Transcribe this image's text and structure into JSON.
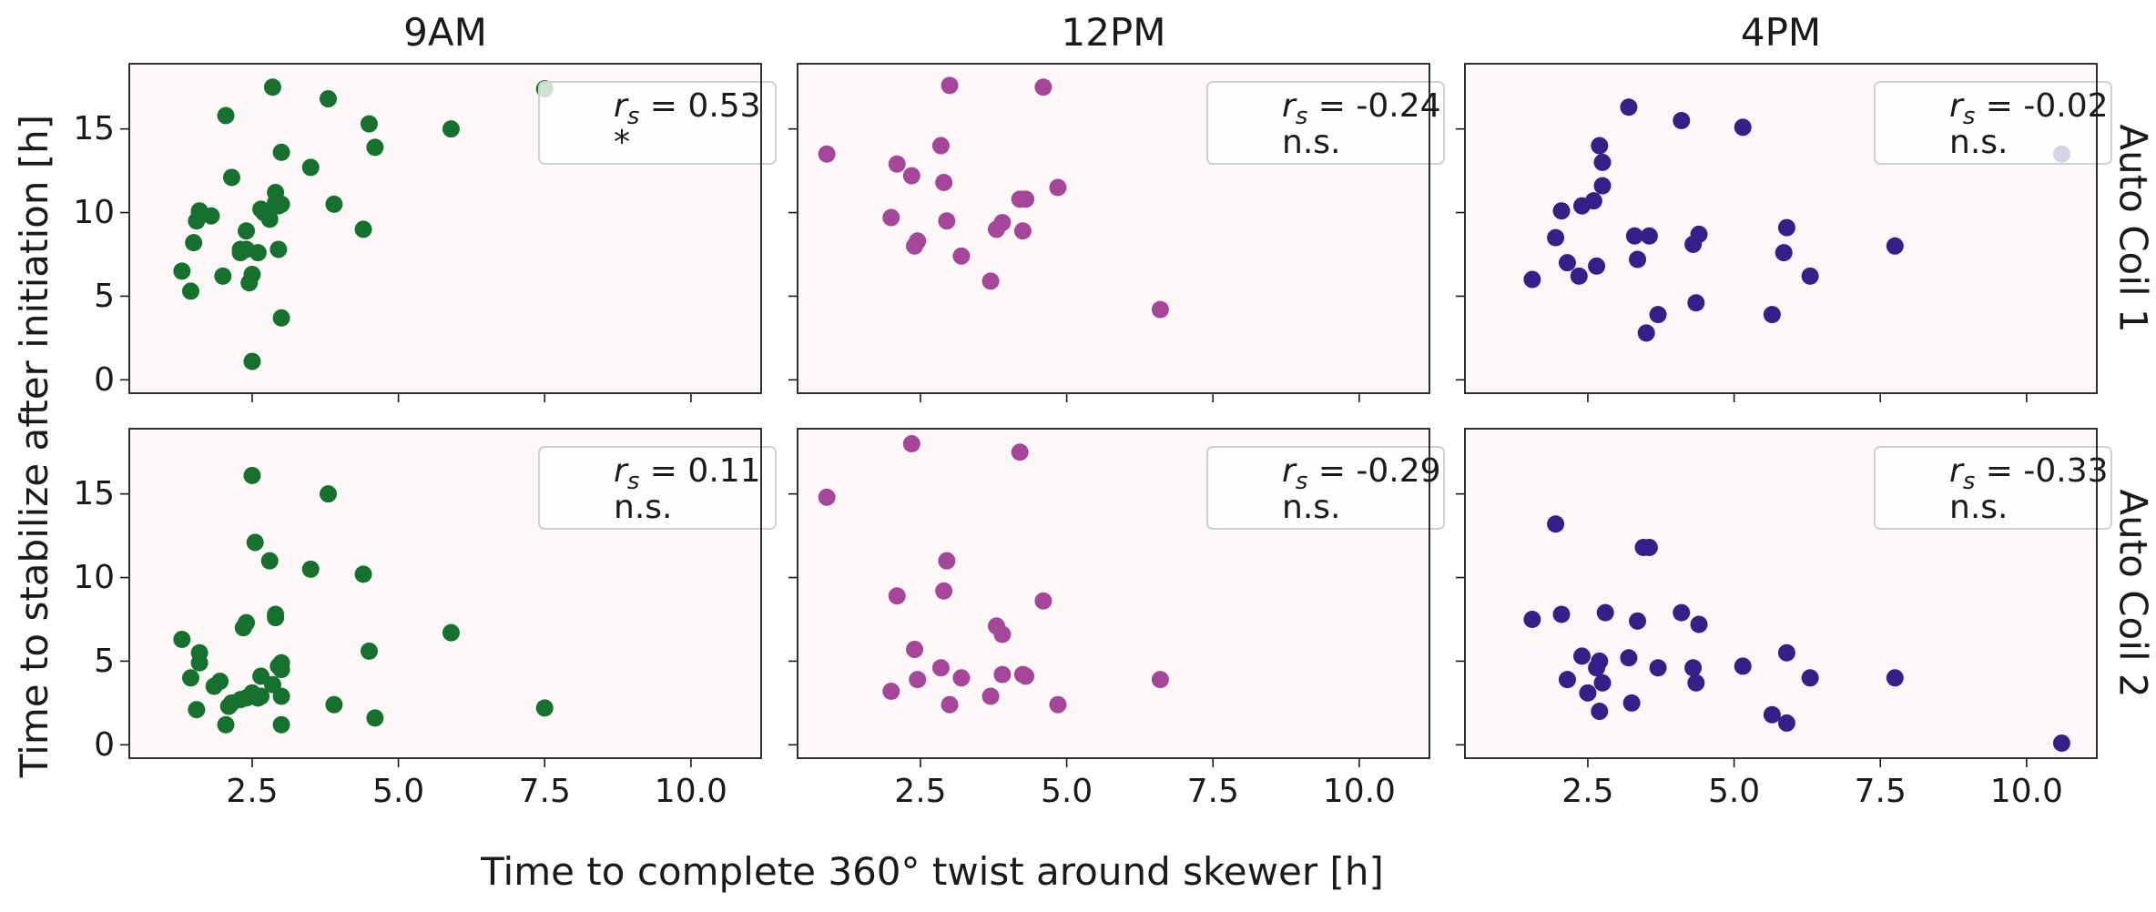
{
  "figure": {
    "xlabel": "Time to complete 360° twist around skewer [h]",
    "ylabel": "Time to stabilize after initiation [h]",
    "columns": [
      "9AM",
      "12PM",
      "4PM"
    ],
    "rows": [
      "Auto Coil 1",
      "Auto Coil 2"
    ],
    "panel_background": "#fdf8f8",
    "colors": {
      "9AM": "#16712f",
      "12PM": "#a6469a",
      "4PM": "#35208a"
    },
    "xlim": [
      0.4,
      11.2
    ],
    "ylim": [
      -0.8,
      18.9
    ],
    "xticks": [
      2.5,
      5.0,
      7.5,
      10.0
    ],
    "yticks": [
      0,
      5,
      10,
      15
    ]
  },
  "chart_data": [
    {
      "type": "scatter",
      "column": "9AM",
      "row": "Auto Coil 1",
      "stat_label": "= 0.53",
      "significance": "*",
      "x": [
        1.3,
        1.45,
        1.5,
        1.55,
        1.6,
        1.6,
        1.8,
        2.0,
        2.05,
        2.15,
        2.3,
        2.3,
        2.4,
        2.4,
        2.45,
        2.5,
        2.5,
        2.6,
        2.65,
        2.7,
        2.8,
        2.85,
        2.9,
        2.9,
        2.95,
        2.95,
        3.0,
        3.0,
        3.0,
        3.5,
        3.8,
        3.9,
        4.4,
        4.5,
        4.6,
        5.9,
        7.5
      ],
      "y": [
        6.5,
        5.3,
        8.2,
        9.5,
        10.1,
        10.0,
        9.8,
        6.2,
        15.8,
        12.1,
        7.6,
        7.8,
        8.9,
        7.8,
        5.8,
        6.3,
        1.1,
        7.6,
        10.2,
        10.0,
        9.6,
        17.5,
        11.2,
        10.6,
        10.4,
        7.8,
        13.6,
        10.5,
        3.7,
        12.7,
        16.8,
        10.5,
        9.0,
        15.3,
        13.9,
        15.0,
        17.4
      ]
    },
    {
      "type": "scatter",
      "column": "12PM",
      "row": "Auto Coil 1",
      "stat_label": "= -0.24",
      "significance": "n.s.",
      "x": [
        0.9,
        2.0,
        2.1,
        2.35,
        2.4,
        2.45,
        2.85,
        2.9,
        2.95,
        3.0,
        3.2,
        3.7,
        3.8,
        3.9,
        4.2,
        4.25,
        4.3,
        4.6,
        4.85,
        6.6
      ],
      "y": [
        13.5,
        9.7,
        12.9,
        12.2,
        8.0,
        8.3,
        14.0,
        11.8,
        9.5,
        17.6,
        7.4,
        5.9,
        9.0,
        9.4,
        10.8,
        8.9,
        10.8,
        17.5,
        11.5,
        4.2
      ]
    },
    {
      "type": "scatter",
      "column": "4PM",
      "row": "Auto Coil 1",
      "stat_label": "= -0.02",
      "significance": "n.s.",
      "x": [
        1.55,
        1.95,
        2.05,
        2.15,
        2.35,
        2.4,
        2.6,
        2.65,
        2.7,
        2.75,
        2.75,
        3.2,
        3.3,
        3.35,
        3.5,
        3.55,
        3.7,
        4.1,
        4.3,
        4.35,
        4.4,
        5.15,
        5.65,
        5.85,
        5.9,
        6.3,
        7.75,
        10.6
      ],
      "y": [
        6.0,
        8.5,
        10.1,
        7.0,
        6.2,
        10.4,
        10.7,
        6.8,
        14.0,
        11.6,
        13.0,
        16.3,
        8.6,
        7.2,
        2.8,
        8.6,
        3.9,
        15.5,
        8.1,
        4.6,
        8.7,
        15.1,
        3.9,
        7.6,
        9.1,
        6.2,
        8.0,
        13.5
      ]
    },
    {
      "type": "scatter",
      "column": "9AM",
      "row": "Auto Coil 2",
      "stat_label": "= 0.11",
      "significance": "n.s.",
      "x": [
        1.3,
        1.45,
        1.55,
        1.6,
        1.6,
        1.85,
        1.95,
        2.05,
        2.1,
        2.15,
        2.3,
        2.35,
        2.4,
        2.4,
        2.5,
        2.5,
        2.55,
        2.6,
        2.65,
        2.65,
        2.8,
        2.85,
        2.9,
        2.9,
        2.95,
        3.0,
        3.0,
        3.0,
        3.0,
        3.5,
        3.8,
        3.9,
        4.4,
        4.5,
        4.6,
        5.9,
        7.5
      ],
      "y": [
        6.3,
        4.0,
        2.1,
        5.5,
        4.9,
        3.5,
        3.8,
        1.2,
        2.3,
        2.5,
        2.7,
        7.0,
        7.3,
        2.8,
        16.1,
        3.1,
        12.1,
        2.8,
        4.1,
        2.9,
        11.0,
        3.6,
        7.6,
        7.8,
        4.7,
        4.5,
        4.9,
        2.9,
        1.2,
        10.5,
        15.0,
        2.4,
        10.2,
        5.6,
        1.6,
        6.7,
        2.2
      ]
    },
    {
      "type": "scatter",
      "column": "12PM",
      "row": "Auto Coil 2",
      "stat_label": "= -0.29",
      "significance": "n.s.",
      "x": [
        0.9,
        2.0,
        2.1,
        2.35,
        2.4,
        2.45,
        2.85,
        2.9,
        2.95,
        3.0,
        3.2,
        3.7,
        3.8,
        3.9,
        3.9,
        4.2,
        4.25,
        4.3,
        4.6,
        4.85,
        6.6
      ],
      "y": [
        14.8,
        3.2,
        8.9,
        18.0,
        5.7,
        3.9,
        4.6,
        9.2,
        11.0,
        2.4,
        4.0,
        2.9,
        7.1,
        6.6,
        4.2,
        17.5,
        4.2,
        4.1,
        8.6,
        2.4,
        3.9
      ]
    },
    {
      "type": "scatter",
      "column": "4PM",
      "row": "Auto Coil 2",
      "stat_label": "= -0.33",
      "significance": "n.s.",
      "x": [
        1.55,
        1.95,
        2.05,
        2.15,
        2.4,
        2.5,
        2.65,
        2.7,
        2.7,
        2.75,
        2.8,
        3.2,
        3.25,
        3.35,
        3.45,
        3.55,
        3.7,
        4.1,
        4.3,
        4.35,
        4.4,
        5.15,
        5.65,
        5.9,
        5.9,
        6.3,
        7.75,
        10.6
      ],
      "y": [
        7.5,
        13.2,
        7.8,
        3.9,
        5.3,
        3.1,
        4.6,
        5.0,
        2.0,
        3.7,
        7.9,
        5.2,
        2.5,
        7.4,
        11.8,
        11.8,
        4.6,
        7.9,
        4.6,
        3.7,
        7.2,
        4.7,
        1.8,
        5.5,
        1.3,
        4.0,
        4.0,
        0.1
      ]
    }
  ]
}
